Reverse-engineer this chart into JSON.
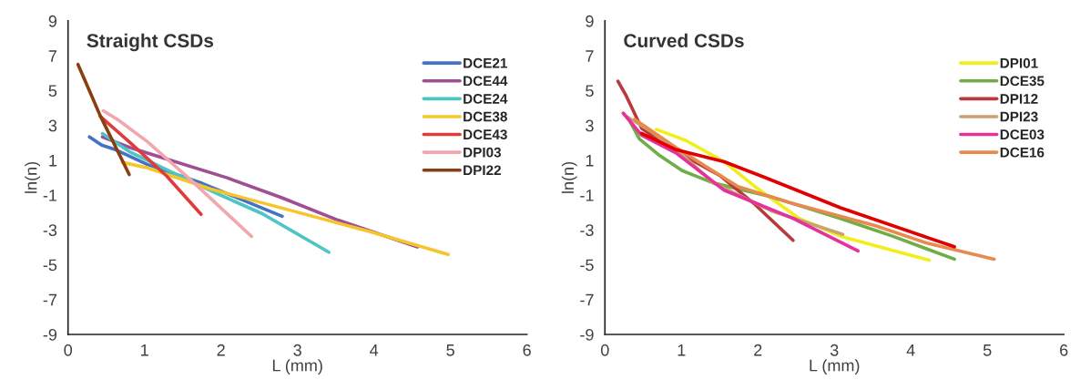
{
  "chart_data": [
    {
      "type": "line",
      "title": "Straight CSDs",
      "xlabel": "L (mm)",
      "ylabel": "ln(n)",
      "xlim": [
        0,
        6
      ],
      "ylim": [
        -9,
        9
      ],
      "xticks": [
        0,
        1,
        2,
        3,
        4,
        5,
        6
      ],
      "yticks": [
        -9,
        -7,
        -5,
        -3,
        -1,
        1,
        3,
        5,
        7,
        9
      ],
      "grid": false,
      "legend": "top right",
      "marker": "none",
      "line_style": "solid",
      "series": [
        {
          "name": "DCE21",
          "color": "#4472c4",
          "x": [
            0.28,
            0.44,
            0.63,
            1.04,
            1.75,
            2.8
          ],
          "values": [
            2.34,
            1.87,
            1.59,
            0.75,
            -0.32,
            -2.22
          ]
        },
        {
          "name": "DCE44",
          "color": "#9e4f96",
          "x": [
            0.45,
            0.84,
            1.25,
            2.08,
            2.78,
            3.53,
            4.57
          ],
          "values": [
            2.34,
            1.68,
            1.12,
            -0.01,
            -1.13,
            -2.44,
            -3.98
          ]
        },
        {
          "name": "DCE24",
          "color": "#4bc5c5",
          "x": [
            0.45,
            0.8,
            1.46,
            1.96,
            2.54,
            3.41
          ],
          "values": [
            2.53,
            1.5,
            0.09,
            -0.94,
            -2.07,
            -4.28
          ]
        },
        {
          "name": "DCE38",
          "color": "#f5c52b",
          "x": [
            0.71,
            1.04,
            1.87,
            2.91,
            3.95,
            4.97
          ],
          "values": [
            0.88,
            0.56,
            -0.66,
            -1.88,
            -3.1,
            -4.41
          ]
        },
        {
          "name": "DCE43",
          "color": "#e03c3c",
          "x": [
            0.42,
            0.8,
            1.29,
            1.74
          ],
          "values": [
            3.52,
            2.06,
            0.09,
            -2.11
          ]
        },
        {
          "name": "DPI03",
          "color": "#f2a6ae",
          "x": [
            0.46,
            0.65,
            1.04,
            1.62,
            2.4
          ],
          "values": [
            3.84,
            3.33,
            2.06,
            -0.19,
            -3.38
          ]
        },
        {
          "name": "DPI22",
          "color": "#8b3f10",
          "x": [
            0.13,
            0.3,
            0.42,
            0.8
          ],
          "values": [
            6.5,
            4.78,
            3.56,
            0.18
          ]
        }
      ]
    },
    {
      "type": "line",
      "title": "Curved CSDs",
      "xlabel": "L (mm)",
      "ylabel": "ln(n)",
      "xlim": [
        0,
        6
      ],
      "ylim": [
        -9,
        9
      ],
      "xticks": [
        0,
        1,
        2,
        3,
        4,
        5,
        6
      ],
      "yticks": [
        -9,
        -7,
        -5,
        -3,
        -1,
        1,
        3,
        5,
        7,
        9
      ],
      "grid": false,
      "legend": "top right",
      "marker": "none",
      "line_style": "solid",
      "series": [
        {
          "name": "DPI01",
          "color": "#f2ee1c",
          "x": [
            0.67,
            1.06,
            1.56,
            1.96,
            2.54,
            3.08,
            3.76,
            4.24
          ],
          "values": [
            2.78,
            2.13,
            0.91,
            -0.51,
            -2.34,
            -3.36,
            -4.17,
            -4.74
          ]
        },
        {
          "name": "DCE35",
          "color": "#70ad47",
          "x": [
            0.3,
            0.45,
            0.7,
            1.01,
            1.42,
            2.19,
            3.08,
            3.76,
            4.57
          ],
          "values": [
            3.45,
            2.23,
            1.32,
            0.4,
            -0.31,
            -1.12,
            -2.34,
            -3.36,
            -4.68
          ]
        },
        {
          "name": "DPI12",
          "color": "#b83a3a",
          "x": [
            0.17,
            0.27,
            0.48,
            0.84,
            1.51,
            1.96,
            2.46
          ],
          "values": [
            5.54,
            4.77,
            2.84,
            1.72,
            0.1,
            -1.53,
            -3.6
          ]
        },
        {
          "name": "DPI23",
          "color": "#c8a46e",
          "x": [
            0.29,
            0.61,
            1.01,
            1.42,
            2.19,
            3.11
          ],
          "values": [
            3.49,
            2.64,
            1.32,
            -0.31,
            -1.93,
            -3.26
          ]
        },
        {
          "name": "DCE03",
          "color": "#e6309c",
          "x": [
            0.24,
            0.48,
            0.93,
            1.56,
            2.46,
            3.31
          ],
          "values": [
            3.7,
            2.44,
            1.42,
            -0.72,
            -2.34,
            -4.21
          ]
        },
        {
          "name": "DCE16",
          "color": "#e8894f",
          "x": [
            0.39,
            0.93,
            1.74,
            2.41,
            3.53,
            4.21,
            5.09
          ],
          "values": [
            3.35,
            1.72,
            -0.51,
            -1.43,
            -2.75,
            -3.76,
            -4.68
          ]
        },
        {
          "color": "#e00000",
          "x": [
            0.48,
            0.92,
            1.56,
            2.1,
            3.08,
            4.57
          ],
          "values": [
            2.54,
            1.62,
            0.91,
            0.0,
            -1.73,
            -3.97
          ]
        }
      ]
    }
  ]
}
